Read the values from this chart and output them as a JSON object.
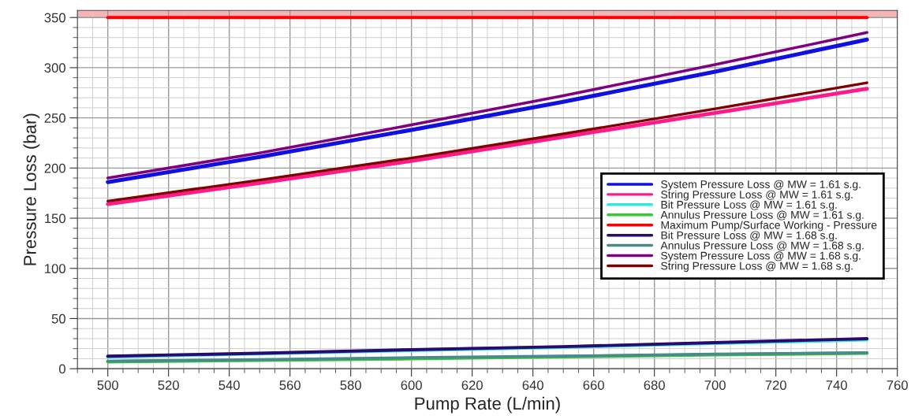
{
  "chart_data": {
    "type": "line",
    "xlabel": "Pump Rate (L/min)",
    "ylabel": "Pressure Loss (bar)",
    "x": [
      500,
      550,
      600,
      650,
      700,
      750
    ],
    "series": [
      {
        "name": "System Pressure Loss @ MW = 1.61 s.g.",
        "color": "#1010e0",
        "values": [
          186,
          211,
          238,
          266,
          296,
          328
        ]
      },
      {
        "name": "String Pressure Loss @ MW = 1.61 s.g.",
        "color": "#ff1a8c",
        "values": [
          164,
          185,
          207,
          231,
          255,
          279
        ]
      },
      {
        "name": "Bit Pressure Loss @ MW = 1.61 s.g.",
        "color": "#33e6e6",
        "values": [
          12,
          15,
          18.5,
          21.5,
          25.5,
          29
        ]
      },
      {
        "name": "Annulus Pressure Loss @ MW = 1.61 s.g.",
        "color": "#33cc33",
        "values": [
          7,
          8.5,
          10,
          12,
          14,
          15.5
        ]
      },
      {
        "name": "Maximum Pump/Surface Working - Pressure",
        "color": "#ff0000",
        "values": [
          350,
          350,
          350,
          350,
          350,
          350
        ]
      },
      {
        "name": "Bit Pressure Loss @ MW = 1.68 s.g.",
        "color": "#2a0a6e",
        "values": [
          12.5,
          15.5,
          19,
          22,
          26,
          30
        ]
      },
      {
        "name": "Annulus Pressure Loss @ MW = 1.68 s.g.",
        "color": "#4a8a8a",
        "values": [
          7.5,
          9,
          11,
          12.5,
          14.5,
          16
        ]
      },
      {
        "name": "System Pressure Loss @ MW = 1.68 s.g.",
        "color": "#800080",
        "values": [
          190,
          215,
          243,
          272,
          303,
          335
        ]
      },
      {
        "name": "String Pressure Loss @ MW = 1.68 s.g.",
        "color": "#800000",
        "values": [
          167,
          188,
          210,
          234,
          259,
          285
        ]
      }
    ],
    "bands": [
      {
        "axis": "y",
        "from": 350,
        "to": 357,
        "color": "#f8b4b4"
      }
    ],
    "xlim": [
      490,
      760
    ],
    "xticks": [
      500,
      520,
      540,
      560,
      580,
      600,
      620,
      640,
      660,
      680,
      700,
      720,
      740,
      760
    ],
    "ylim": [
      0,
      357
    ],
    "yticks": [
      0,
      50,
      100,
      150,
      200,
      250,
      300,
      350
    ],
    "grid": true,
    "legend": "right",
    "marker": "none",
    "line_style": "solid"
  }
}
